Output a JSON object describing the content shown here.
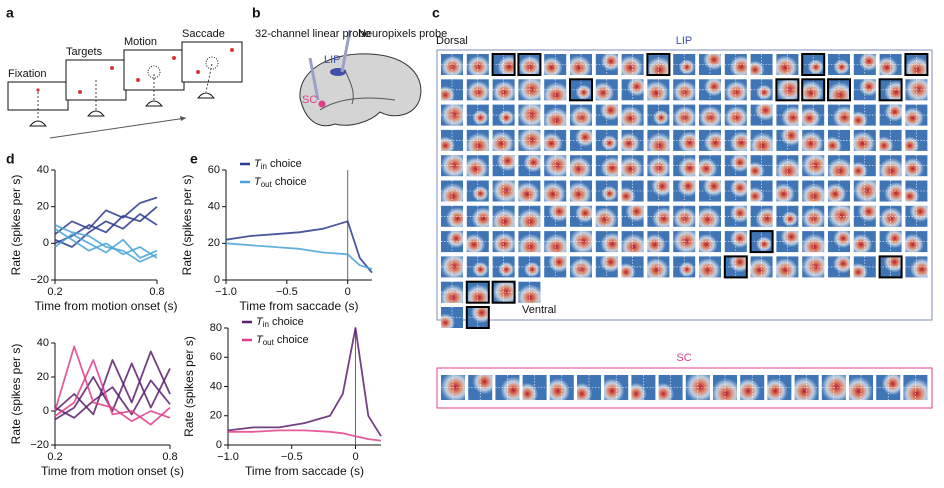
{
  "panels": {
    "a": "a",
    "b": "b",
    "c": "c",
    "d": "d",
    "e": "e"
  },
  "task": {
    "fixation": "Fixation",
    "targets": "Targets",
    "motion": "Motion",
    "saccade": "Saccade"
  },
  "brain": {
    "linear_probe": "32-channel linear probe",
    "neuropixels": "Neuropixels probe",
    "lip": "LIP",
    "sc": "SC"
  },
  "maps": {
    "dorsal": "Dorsal",
    "lip_title": "LIP",
    "ventral": "Ventral",
    "sc_title": "SC"
  },
  "chart_data": [
    {
      "type": "line",
      "xlim": [
        0.2,
        0.8
      ],
      "ylim": [
        -20,
        40
      ],
      "xticks": [
        0.2,
        0.8
      ],
      "yticks": [
        {
          "value": -20,
          "label": "−20"
        },
        0,
        20,
        40
      ],
      "xlabel": "Time from motion onset (s)",
      "ylabel": "Rate (spikes per s)",
      "x": [
        0.2,
        0.3,
        0.4,
        0.5,
        0.6,
        0.7,
        0.8
      ],
      "series": [
        {
          "color": "#2b3a8c",
          "values": [
            5,
            12,
            8,
            18,
            14,
            22,
            25
          ]
        },
        {
          "color": "#2b3a8c",
          "values": [
            0,
            4,
            10,
            6,
            15,
            12,
            20
          ]
        },
        {
          "color": "#2b3a8c",
          "values": [
            2,
            -2,
            6,
            12,
            8,
            16,
            10
          ]
        },
        {
          "color": "#4aa3d8",
          "values": [
            8,
            2,
            -4,
            0,
            -6,
            -2,
            -8
          ]
        },
        {
          "color": "#4aa3d8",
          "values": [
            -2,
            5,
            0,
            -5,
            2,
            -8,
            -4
          ]
        },
        {
          "color": "#4aa3d8",
          "values": [
            10,
            6,
            4,
            -2,
            -4,
            -10,
            -6
          ]
        }
      ]
    },
    {
      "type": "line",
      "xlim": [
        -1.0,
        0.2
      ],
      "ylim": [
        0,
        60
      ],
      "xticks": [
        {
          "value": -1.0,
          "label": "−1.0"
        },
        {
          "value": -0.5,
          "label": "−0.5"
        },
        0
      ],
      "yticks": [
        0,
        20,
        40,
        60
      ],
      "xlabel": "Time from saccade (s)",
      "ylabel": "Rate (spikes per s)",
      "legend": true,
      "x": [
        -1.0,
        -0.8,
        -0.6,
        -0.4,
        -0.2,
        0,
        0.1,
        0.2
      ],
      "series": [
        {
          "name": {
            "symbol": "T",
            "sub": "in",
            "text": "choice"
          },
          "color": "#2b3a8c",
          "values": [
            22,
            24,
            25,
            26,
            28,
            32,
            12,
            4
          ]
        },
        {
          "name": {
            "symbol": "T",
            "sub": "out",
            "text": "choice"
          },
          "color": "#4aa3d8",
          "values": [
            20,
            19,
            18,
            17,
            15,
            14,
            8,
            6
          ]
        }
      ]
    },
    {
      "type": "line",
      "xlim": [
        0.2,
        0.8
      ],
      "ylim": [
        -20,
        40
      ],
      "xticks": [
        0.2,
        0.8
      ],
      "yticks": [
        {
          "value": -20,
          "label": "−20"
        },
        0,
        20,
        40
      ],
      "xlabel": "Time from motion onset (s)",
      "ylabel": "Rate (spikes per s)",
      "x": [
        0.2,
        0.3,
        0.4,
        0.5,
        0.6,
        0.7,
        0.8
      ],
      "series": [
        {
          "color": "#5b1f6e",
          "values": [
            0,
            10,
            -2,
            30,
            5,
            35,
            10
          ]
        },
        {
          "color": "#5b1f6e",
          "values": [
            -5,
            2,
            20,
            0,
            28,
            2,
            25
          ]
        },
        {
          "color": "#5b1f6e",
          "values": [
            2,
            -4,
            6,
            14,
            -2,
            18,
            4
          ]
        },
        {
          "color": "#e0408a",
          "values": [
            0,
            38,
            5,
            2,
            -6,
            0,
            -4
          ]
        },
        {
          "color": "#e0408a",
          "values": [
            -3,
            5,
            30,
            -2,
            0,
            -8,
            2
          ]
        }
      ]
    },
    {
      "type": "line",
      "xlim": [
        -1.0,
        0.2
      ],
      "ylim": [
        0,
        80
      ],
      "xticks": [
        {
          "value": -1.0,
          "label": "−1.0"
        },
        {
          "value": -0.5,
          "label": "−0.5"
        },
        0
      ],
      "yticks": [
        0,
        20,
        40,
        60,
        80
      ],
      "xlabel": "Time from saccade (s)",
      "ylabel": "Rate (spikes per s)",
      "legend": true,
      "x": [
        -1.0,
        -0.8,
        -0.6,
        -0.4,
        -0.2,
        -0.1,
        0,
        0.1,
        0.2
      ],
      "series": [
        {
          "name": {
            "symbol": "T",
            "sub": "in",
            "text": "choice"
          },
          "color": "#5b1f6e",
          "values": [
            10,
            12,
            12,
            15,
            20,
            35,
            80,
            20,
            6
          ]
        },
        {
          "name": {
            "symbol": "T",
            "sub": "out",
            "text": "choice"
          },
          "color": "#e0408a",
          "values": [
            9,
            9,
            10,
            10,
            9,
            8,
            6,
            4,
            3
          ]
        }
      ]
    }
  ]
}
